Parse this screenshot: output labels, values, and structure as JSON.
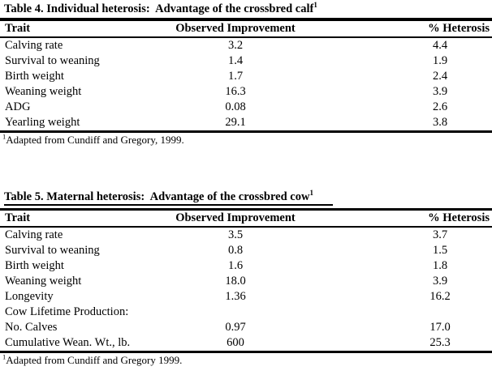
{
  "colors": {
    "background": "#ffffff",
    "text": "#000000",
    "rule": "#000000"
  },
  "tables": [
    {
      "title": "Table 4. Individual heterosis:  Advantage of the crossbred calf",
      "title_superscript": "1",
      "columns": [
        "Trait",
        "Observed Improvement",
        "% Heterosis"
      ],
      "rows": [
        {
          "trait": "Calving rate",
          "observed": "3.2",
          "heterosis": "4.4"
        },
        {
          "trait": "Survival to weaning",
          "observed": "1.4",
          "heterosis": "1.9"
        },
        {
          "trait": "Birth weight",
          "observed": "1.7",
          "heterosis": "2.4"
        },
        {
          "trait": "Weaning weight",
          "observed": "16.3",
          "heterosis": "3.9"
        },
        {
          "trait": "ADG",
          "observed": "0.08",
          "heterosis": "2.6"
        },
        {
          "trait": "Yearling weight",
          "observed": "29.1",
          "heterosis": "3.8"
        }
      ],
      "footnote_superscript": "1",
      "footnote": "Adapted from Cundiff and Gregory, 1999."
    },
    {
      "title": "Table 5. Maternal heterosis:  Advantage of the crossbred cow",
      "title_superscript": "1",
      "columns": [
        "Trait",
        "Observed Improvement",
        "% Heterosis"
      ],
      "rows": [
        {
          "trait": "Calving rate",
          "observed": "3.5",
          "heterosis": "3.7"
        },
        {
          "trait": "Survival to weaning",
          "observed": "0.8",
          "heterosis": "1.5"
        },
        {
          "trait": "Birth weight",
          "observed": "1.6",
          "heterosis": "1.8"
        },
        {
          "trait": "Weaning weight",
          "observed": "18.0",
          "heterosis": "3.9"
        },
        {
          "trait": "Longevity",
          "observed": "1.36",
          "heterosis": "16.2"
        },
        {
          "trait": "Cow Lifetime Production:",
          "observed": "",
          "heterosis": ""
        },
        {
          "trait": "No. Calves",
          "observed": "0.97",
          "heterosis": "17.0"
        },
        {
          "trait": "Cumulative Wean. Wt., lb.",
          "observed": "600",
          "heterosis": "25.3"
        }
      ],
      "footnote_superscript": "1",
      "footnote": "Adapted from Cundiff and Gregory 1999."
    }
  ]
}
